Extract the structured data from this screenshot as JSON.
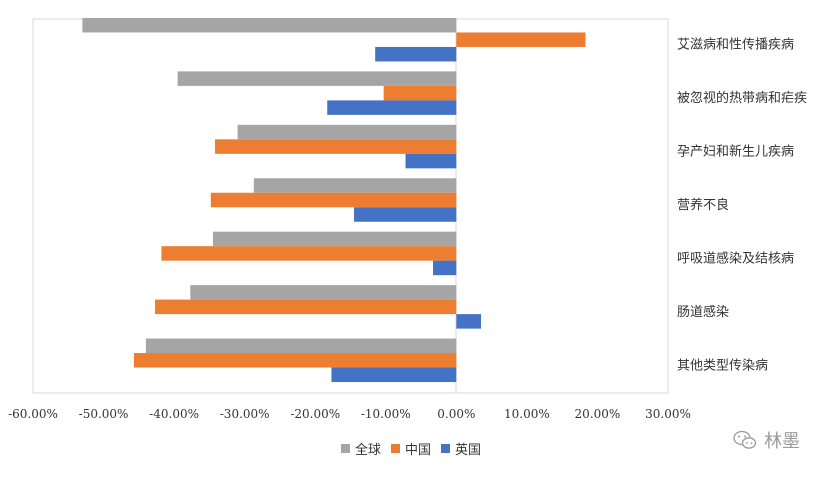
{
  "chart_data": {
    "type": "bar",
    "orientation": "horizontal",
    "title": "",
    "xlabel": "",
    "ylabel": "",
    "xlim": [
      -0.6,
      0.3
    ],
    "x_ticks": [
      -0.6,
      -0.5,
      -0.4,
      -0.3,
      -0.2,
      -0.1,
      0,
      0.1,
      0.2,
      0.3
    ],
    "x_tick_labels": [
      "-60.00%",
      "-50.00%",
      "-40.00%",
      "-30.00%",
      "-20.00%",
      "-10.00%",
      "0.00%",
      "10.00%",
      "20.00%",
      "30.00%"
    ],
    "categories": [
      "艾滋病和性传播疾病",
      "被忽视的热带病和疟疾",
      "孕产妇和新生儿疾病",
      "营养不良",
      "呼吸道感染及结核病",
      "肠道感染",
      "其他类型传染病"
    ],
    "series": [
      {
        "name": "全球",
        "color": "#A5A5A5",
        "values": [
          -0.53,
          -0.395,
          -0.31,
          -0.287,
          -0.345,
          -0.377,
          -0.44
        ]
      },
      {
        "name": "中国",
        "color": "#ED7D31",
        "values": [
          0.183,
          -0.103,
          -0.342,
          -0.348,
          -0.418,
          -0.427,
          -0.457
        ]
      },
      {
        "name": "英国",
        "color": "#4472C4",
        "values": [
          -0.115,
          -0.183,
          -0.072,
          -0.145,
          -0.033,
          0.035,
          -0.177
        ]
      }
    ],
    "grid": false,
    "legend_position": "bottom"
  },
  "watermark": {
    "text": "林墨",
    "icon": "wechat-icon"
  }
}
